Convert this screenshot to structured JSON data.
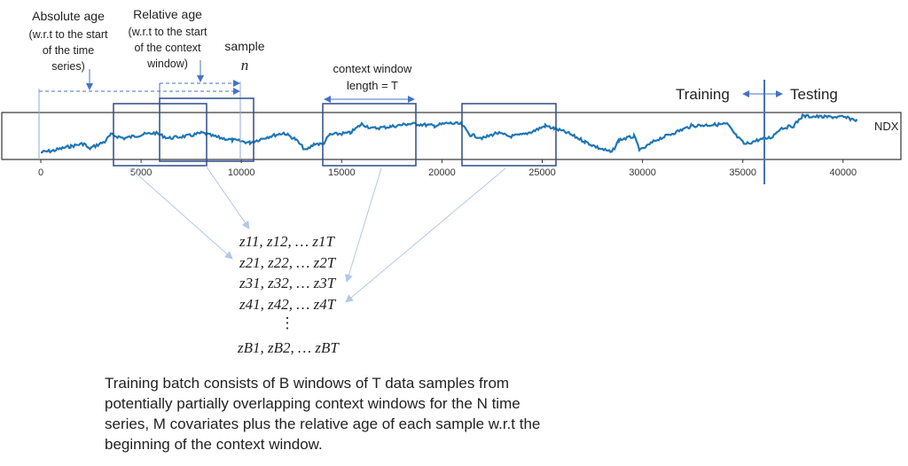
{
  "labels": {
    "absolute_age": [
      "Absolute age",
      "(w.r.t to the start",
      "of the time",
      "series)"
    ],
    "relative_age": [
      "Relative age",
      "(w.r.t to the start",
      "of the context",
      "window)"
    ],
    "sample": [
      "sample",
      "n"
    ],
    "context_window": [
      "context window",
      "length = T"
    ],
    "training": "Training",
    "testing": "Testing",
    "series_name": "NDX"
  },
  "x_axis": {
    "ticks": [
      "0",
      "5000",
      "10000",
      "15000",
      "20000",
      "25000",
      "30000",
      "35000",
      "40000"
    ]
  },
  "batch_rows": [
    "z11, z12, … z1T",
    "z21, z22, … z2T",
    "z31, z32, … z3T",
    "z41, z42, … z4T",
    "⋮",
    "zB1, zB2, … zBT"
  ],
  "description": [
    "Training batch consists of B windows of T data samples from",
    "potentially partially overlapping context windows for the N time",
    "series, M covariates plus the relative age of each sample w.r.t the",
    "beginning of the context window."
  ],
  "colors": {
    "series": "#1f77b4",
    "window_box": "#2f4b8a",
    "annotation": "#4472c4",
    "pointer": "#b4c7e7"
  }
}
